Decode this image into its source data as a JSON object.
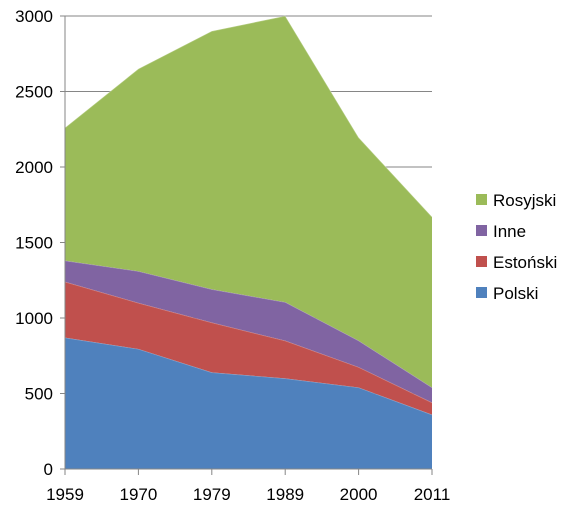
{
  "chart_data": {
    "type": "area",
    "stacked": true,
    "title": "",
    "xlabel": "",
    "ylabel": "",
    "x": [
      "1959",
      "1970",
      "1979",
      "1989",
      "2000",
      "2011"
    ],
    "ylim": [
      0,
      3000
    ],
    "yticks": [
      0,
      500,
      1000,
      1500,
      2000,
      2500,
      3000
    ],
    "yticklabels": [
      "0",
      "500",
      "1000",
      "1500",
      "2000",
      "2500",
      "3000"
    ],
    "grid": true,
    "legend_position": "right",
    "series": [
      {
        "name": "Polski",
        "color": "#4F81BD",
        "values": [
          870,
          795,
          640,
          600,
          540,
          360
        ]
      },
      {
        "name": "Estoński",
        "color": "#C0504D",
        "values": [
          370,
          305,
          330,
          250,
          135,
          80
        ]
      },
      {
        "name": "Inne",
        "color": "#8064A2",
        "values": [
          140,
          210,
          220,
          255,
          175,
          100
        ]
      },
      {
        "name": "Rosyjski",
        "color": "#9BBB59",
        "values": [
          880,
          1340,
          1710,
          1895,
          1345,
          1130
        ]
      }
    ],
    "legend_order": [
      "Rosyjski",
      "Inne",
      "Estoński",
      "Polski"
    ]
  }
}
